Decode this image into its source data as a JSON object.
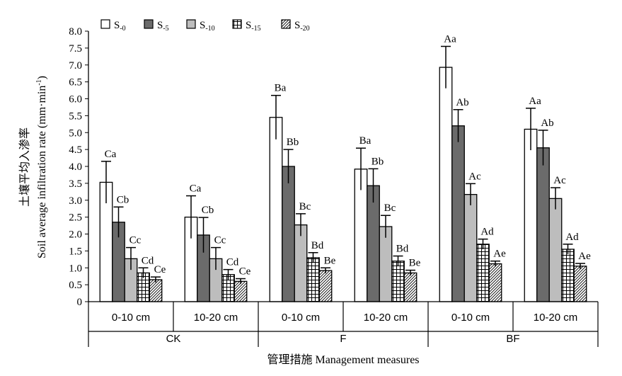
{
  "chart_data": {
    "type": "bar",
    "title": "",
    "ylabel_cn": "土壤平均入渗率",
    "ylabel": "Soil average infiltration rate (mm·min",
    "ylabel_sup": "-1",
    "ylabel_end": ")",
    "xlabel": "管理措施 Management measures",
    "ylim": [
      0,
      8
    ],
    "yticks": [
      "0",
      "0.5",
      "1.0",
      "1.5",
      "2.0",
      "2.5",
      "3.0",
      "3.5",
      "4.0",
      "4.5",
      "5.0",
      "5.5",
      "6.0",
      "6.5",
      "7.0",
      "7.5",
      "8.0"
    ],
    "groups": [
      "CK",
      "F",
      "BF"
    ],
    "categories": [
      "0-10 cm",
      "10-20 cm",
      "0-10 cm",
      "10-20 cm",
      "0-10 cm",
      "10-20 cm"
    ],
    "legend": {
      "placement": "top-left"
    },
    "series": [
      {
        "name": "S",
        "sub": "-0",
        "pattern": "white",
        "values": [
          3.53,
          2.5,
          5.45,
          3.92,
          6.93,
          5.1
        ],
        "errors": [
          0.62,
          0.63,
          0.65,
          0.62,
          0.62,
          0.62
        ],
        "labels": [
          "Ca",
          "Ca",
          "Ba",
          "Ba",
          "Aa",
          "Aa"
        ]
      },
      {
        "name": "S",
        "sub": "-5",
        "pattern": "darkgray",
        "values": [
          2.35,
          1.97,
          4.0,
          3.43,
          5.2,
          4.55
        ],
        "errors": [
          0.45,
          0.52,
          0.5,
          0.5,
          0.48,
          0.52
        ],
        "labels": [
          "Cb",
          "Cb",
          "Bb",
          "Bb",
          "Ab",
          "Ab"
        ]
      },
      {
        "name": "S",
        "sub": "-10",
        "pattern": "lightgray",
        "values": [
          1.27,
          1.27,
          2.27,
          2.22,
          3.17,
          3.05
        ],
        "errors": [
          0.33,
          0.33,
          0.33,
          0.33,
          0.32,
          0.32
        ],
        "labels": [
          "Cc",
          "Cc",
          "Bc",
          "Bc",
          "Ac",
          "Ac"
        ]
      },
      {
        "name": "S",
        "sub": "-15",
        "pattern": "grid",
        "values": [
          0.85,
          0.8,
          1.3,
          1.2,
          1.7,
          1.55
        ],
        "errors": [
          0.15,
          0.15,
          0.15,
          0.15,
          0.15,
          0.15
        ],
        "labels": [
          "Cd",
          "Cd",
          "Bd",
          "Bd",
          "Ad",
          "Ad"
        ]
      },
      {
        "name": "S",
        "sub": "-20",
        "pattern": "diag",
        "values": [
          0.65,
          0.6,
          0.92,
          0.85,
          1.12,
          1.05
        ],
        "errors": [
          0.08,
          0.08,
          0.08,
          0.08,
          0.08,
          0.08
        ],
        "labels": [
          "Ce",
          "Ce",
          "Be",
          "Be",
          "Ae",
          "Ae"
        ]
      }
    ]
  }
}
